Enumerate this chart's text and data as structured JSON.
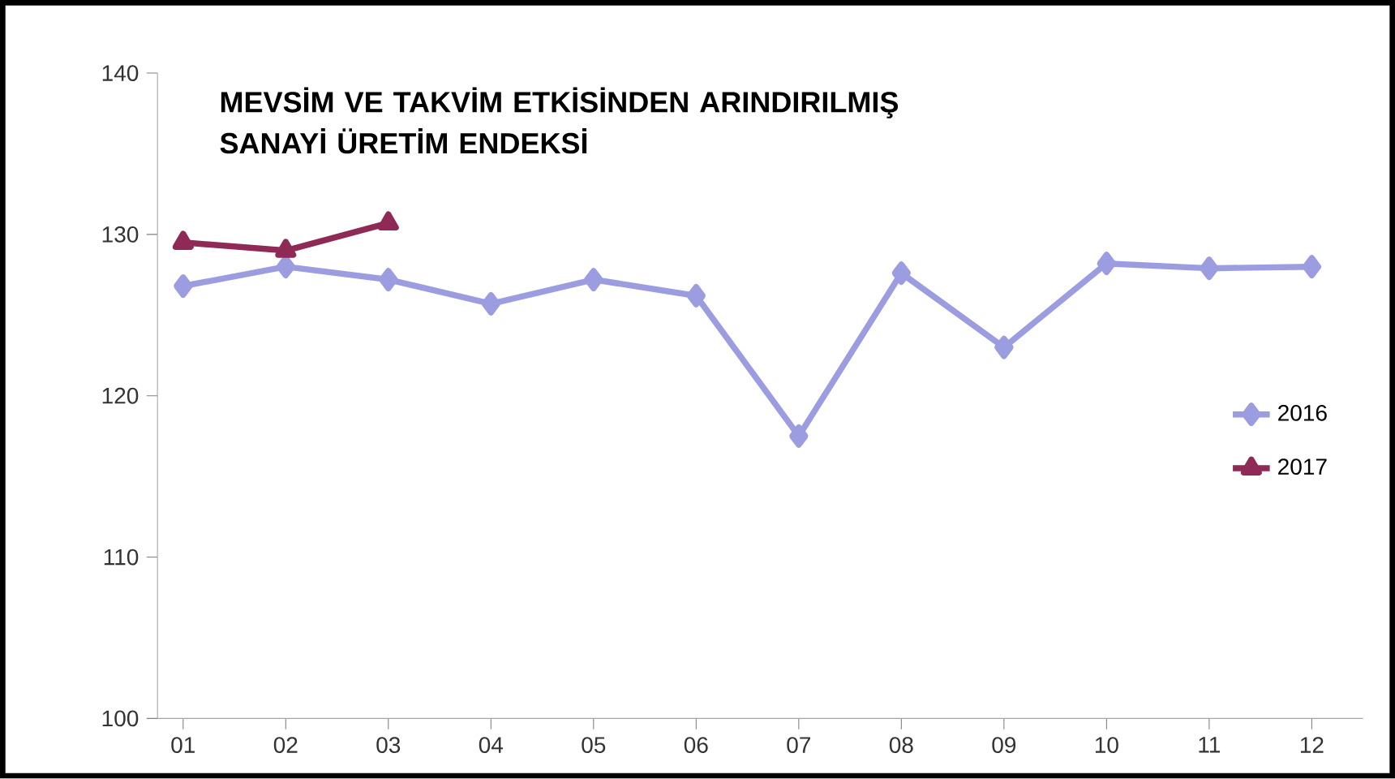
{
  "chart_data": {
    "type": "line",
    "title": "MEVSİM VE TAKVİM ETKİSİNDEN ARINDIRILMIŞ SANAYİ ÜRETİM ENDEKSİ",
    "categories": [
      "01",
      "02",
      "03",
      "04",
      "05",
      "06",
      "07",
      "08",
      "09",
      "10",
      "11",
      "12"
    ],
    "series": [
      {
        "name": "2016",
        "color": "#9c9ce0",
        "marker": "diamond",
        "values": [
          126.8,
          128.0,
          127.2,
          125.7,
          127.2,
          126.2,
          117.5,
          127.6,
          123.0,
          128.2,
          127.9,
          128.0
        ]
      },
      {
        "name": "2017",
        "color": "#8e2a55",
        "marker": "triangle",
        "values": [
          129.5,
          129.0,
          130.7,
          null,
          null,
          null,
          null,
          null,
          null,
          null,
          null,
          null
        ]
      }
    ],
    "ylim": [
      100,
      140
    ],
    "yticks": [
      100,
      110,
      120,
      130,
      140
    ],
    "legend": "right",
    "grid": false
  }
}
